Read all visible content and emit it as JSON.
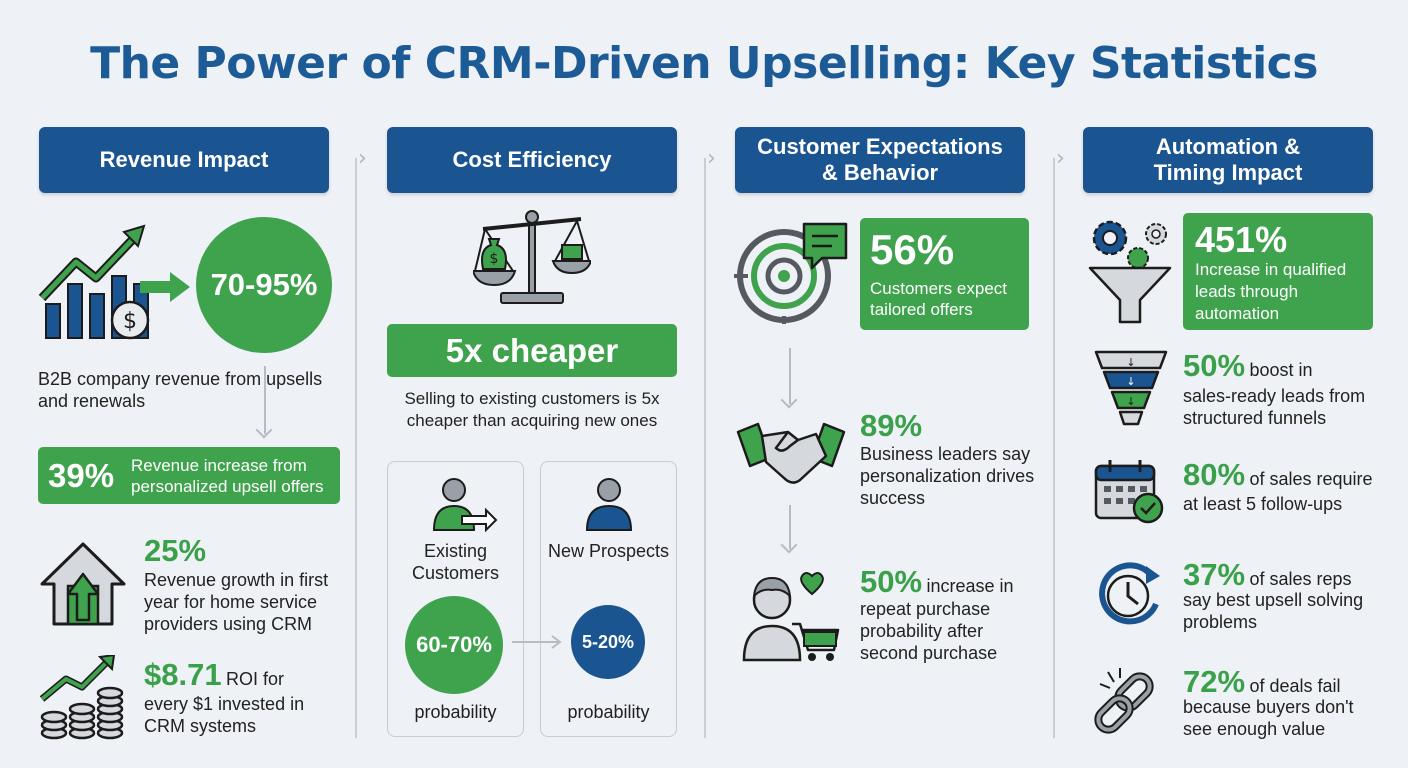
{
  "title": "The Power of CRM-Driven Upselling: Key Statistics",
  "colors": {
    "navy": "#1a5592",
    "green": "#3fa34d",
    "title_blue": "#1d5b96",
    "background": "#eef1f5"
  },
  "columns": [
    {
      "header": "Revenue Impact"
    },
    {
      "header": "Cost Efficiency"
    },
    {
      "header": "Customer Expectations & Behavior"
    },
    {
      "header": "Automation & Timing Impact"
    }
  ],
  "revenue": {
    "hero_value": "70-95%",
    "hero_caption": "B2B company revenue from upsells and renewals",
    "box_value": "39%",
    "box_text": "Revenue increase from personalized upsell offers",
    "stat1_value": "25%",
    "stat1_text": "Revenue growth in first year for home service providers using CRM",
    "stat2_value": "$8.71",
    "stat2_text_inline": "ROI for",
    "stat2_text": "every $1 invested in CRM systems",
    "icons": [
      "growth-chart-icon",
      "dollar-coin-icon",
      "house-arrow-icon",
      "coins-growth-icon"
    ]
  },
  "cost": {
    "badge": "5x cheaper",
    "caption": "Selling to existing customers is 5x cheaper than acquiring new ones",
    "existing_label": "Existing Customers",
    "existing_value": "60-70%",
    "existing_prob": "probability",
    "new_label": "New Prospects",
    "new_value": "5-20%",
    "new_prob": "probability",
    "icons": [
      "balance-scale-icon",
      "person-arrow-icon",
      "person-icon"
    ]
  },
  "expectations": {
    "box_value": "56%",
    "box_text": "Customers expect tailored offers",
    "stat1_value": "89%",
    "stat1_text": "Business leaders say personalization drives success",
    "stat2_value": "50%",
    "stat2_inline": "increase in",
    "stat2_text": "repeat purchase probability after second purchase",
    "icons": [
      "target-chat-icon",
      "handshake-icon",
      "shopper-cart-icon"
    ]
  },
  "automation": {
    "box_value": "451%",
    "box_text": "Increase in qualified leads through automation",
    "s1_value": "50%",
    "s1_inline": "boost in",
    "s1_text": "sales-ready leads from structured funnels",
    "s2_value": "80%",
    "s2_inline": "of sales require",
    "s2_text": "at least 5 follow-ups",
    "s3_value": "37%",
    "s3_inline": "of sales reps",
    "s3_text": "say best upsell solving problems",
    "s4_value": "72%",
    "s4_inline": "of deals fail",
    "s4_text": "because buyers don't see enough value",
    "icons": [
      "gears-funnel-icon",
      "funnel-icon",
      "calendar-check-icon",
      "clock-icon",
      "broken-link-icon"
    ]
  }
}
